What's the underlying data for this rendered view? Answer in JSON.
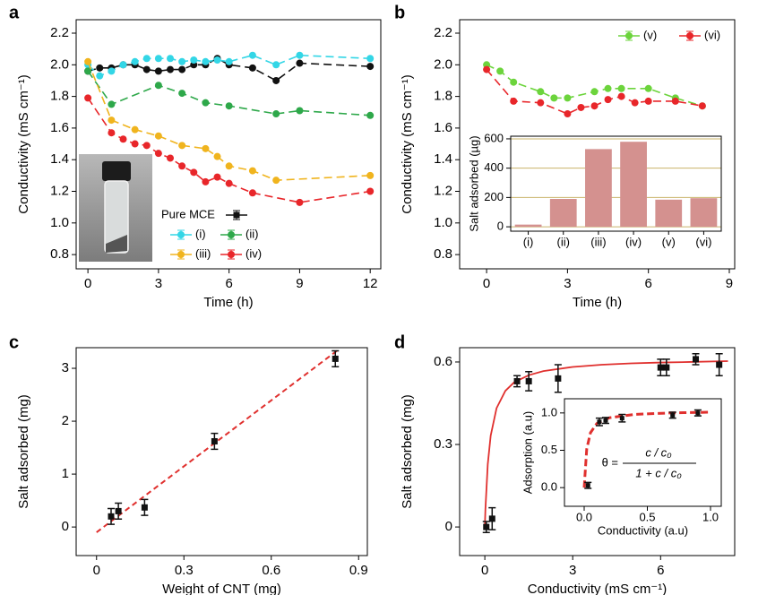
{
  "chart_data": [
    {
      "panel": "a",
      "type": "line",
      "xlabel": "Time (h)",
      "ylabel": "Conductivity (mS cm⁻¹)",
      "xlim": [
        -0.5,
        12.45
      ],
      "xticks": [
        0,
        3,
        6,
        9,
        12
      ],
      "ylim": [
        0.71,
        2.285
      ],
      "yticks": [
        0.8,
        {
          "value": 1,
          "label": "1.0"
        },
        1.2,
        1.4,
        1.6,
        1.8,
        {
          "value": 2,
          "label": "2.0"
        },
        2.2
      ],
      "legend": "lower-right",
      "series": [
        {
          "name": "Pure MCE",
          "color": "#111111",
          "x": [
            0,
            0.5,
            1,
            1.5,
            2,
            2.5,
            3,
            3.5,
            4,
            4.5,
            5,
            5.5,
            6,
            7,
            8,
            9,
            12
          ],
          "values": [
            1.96,
            1.98,
            1.98,
            2.0,
            2.0,
            1.97,
            1.96,
            1.97,
            1.97,
            2.0,
            2.0,
            2.04,
            2.0,
            1.98,
            1.9,
            2.01,
            1.99
          ]
        },
        {
          "name": "(i)",
          "color": "#33d6e6",
          "x": [
            0,
            0.5,
            1,
            1.5,
            2,
            2.5,
            3,
            3.5,
            4,
            4.5,
            5,
            5.5,
            6,
            7,
            8,
            9,
            12
          ],
          "values": [
            2.0,
            1.93,
            1.96,
            2.0,
            2.02,
            2.04,
            2.04,
            2.04,
            2.02,
            2.03,
            2.02,
            2.03,
            2.02,
            2.06,
            2.0,
            2.06,
            2.04
          ]
        },
        {
          "name": "(ii)",
          "color": "#2ea84a",
          "x": [
            0,
            1,
            3,
            4,
            5,
            6,
            8,
            9,
            12
          ],
          "values": [
            1.96,
            1.75,
            1.87,
            1.82,
            1.76,
            1.74,
            1.69,
            1.71,
            1.68
          ]
        },
        {
          "name": "(iii)",
          "color": "#f0b41e",
          "x": [
            0,
            1,
            2,
            3,
            4,
            5,
            5.5,
            6,
            7,
            8,
            12
          ],
          "values": [
            2.02,
            1.65,
            1.59,
            1.55,
            1.49,
            1.47,
            1.42,
            1.36,
            1.33,
            1.27,
            1.3
          ]
        },
        {
          "name": "(iv)",
          "color": "#e8262a",
          "x": [
            0,
            1,
            1.5,
            2,
            2.5,
            3,
            3.5,
            4,
            4.5,
            5,
            5.5,
            6,
            7,
            9,
            12
          ],
          "values": [
            1.79,
            1.57,
            1.53,
            1.5,
            1.49,
            1.44,
            1.41,
            1.36,
            1.32,
            1.26,
            1.29,
            1.25,
            1.19,
            1.13,
            1.2
          ]
        }
      ]
    },
    {
      "panel": "b",
      "type": "line",
      "xlabel": "Time (h)",
      "ylabel": "Conductivity (mS cm⁻¹)",
      "xlim": [
        -1,
        9.2
      ],
      "xticks": [
        0,
        3,
        6,
        9
      ],
      "ylim": [
        0.71,
        2.285
      ],
      "yticks": [
        0.8,
        {
          "value": 1,
          "label": "1.0"
        },
        1.2,
        1.4,
        1.6,
        1.8,
        {
          "value": 2,
          "label": "2.0"
        },
        2.2
      ],
      "legend": "upper-right",
      "series": [
        {
          "name": "(v)",
          "color": "#6cd43c",
          "x": [
            0,
            0.5,
            1,
            2,
            2.5,
            3,
            4,
            4.5,
            5,
            6,
            7,
            8
          ],
          "values": [
            2.0,
            1.96,
            1.89,
            1.83,
            1.79,
            1.79,
            1.83,
            1.85,
            1.85,
            1.85,
            1.79,
            1.74
          ]
        },
        {
          "name": "(vi)",
          "color": "#e8262a",
          "x": [
            0,
            1,
            2,
            3,
            3.5,
            4,
            4.5,
            5,
            5.5,
            6,
            7,
            8
          ],
          "values": [
            1.97,
            1.77,
            1.76,
            1.69,
            1.73,
            1.74,
            1.78,
            1.8,
            1.76,
            1.77,
            1.77,
            1.74
          ]
        }
      ],
      "inset": {
        "type": "bar",
        "ylabel": "Salt adsorbed (µg)",
        "categories": [
          "(i)",
          "(ii)",
          "(iii)",
          "(iv)",
          "(v)",
          "(vi)"
        ],
        "values": [
          15,
          190,
          530,
          580,
          185,
          195
        ],
        "color": "#d4918f",
        "ylim": [
          -30,
          618
        ],
        "yticks": [
          0,
          200,
          400,
          600
        ],
        "grid": true
      }
    },
    {
      "panel": "c",
      "type": "scatter",
      "xlabel": "Weight of CNT (mg)",
      "ylabel": "Salt adsorbed (mg)",
      "xlim": [
        -0.07,
        0.93
      ],
      "xticks": [
        0,
        0.3,
        0.6,
        0.9
      ],
      "ylim": [
        -0.54,
        3.39
      ],
      "yticks": [
        0,
        1,
        2,
        3
      ],
      "color": "#111111",
      "x": [
        0.05,
        0.075,
        0.165,
        0.405,
        0.82
      ],
      "values": [
        0.2,
        0.3,
        0.37,
        1.62,
        3.18
      ],
      "errors": [
        0.15,
        0.15,
        0.15,
        0.15,
        0.15
      ],
      "fit": {
        "color": "#e0302e",
        "dashed": true,
        "x": [
          0,
          0.83
        ],
        "y": [
          -0.1,
          3.35
        ]
      }
    },
    {
      "panel": "d",
      "type": "scatter",
      "xlabel": "Conductivity (mS cm⁻¹)",
      "ylabel": "Salt adsorbed (mg)",
      "xlim": [
        -0.86,
        8.53
      ],
      "xticks": [
        0,
        3,
        6
      ],
      "ylim": [
        -0.104,
        0.652
      ],
      "yticks": [
        0,
        0.3,
        0.6
      ],
      "color": "#111111",
      "x": [
        0.05,
        0.25,
        1.1,
        1.5,
        2.5,
        6.0,
        6.2,
        7.2,
        8.0
      ],
      "values": [
        0,
        0.03,
        0.53,
        0.53,
        0.54,
        0.58,
        0.58,
        0.61,
        0.59
      ],
      "errors": [
        0.02,
        0.04,
        0.02,
        0.035,
        0.05,
        0.03,
        0.03,
        0.02,
        0.04
      ],
      "fit": {
        "color": "#e0302e",
        "dashed": false,
        "x": [
          0,
          0.02,
          0.1,
          0.2,
          0.4,
          0.7,
          1,
          1.5,
          2,
          3,
          4,
          5,
          6,
          7,
          8.3
        ],
        "y": [
          0,
          0.065,
          0.228,
          0.332,
          0.432,
          0.495,
          0.526,
          0.552,
          0.567,
          0.582,
          0.59,
          0.595,
          0.598,
          0.6,
          0.603
        ]
      },
      "inset": {
        "type": "scatter",
        "xlabel": "Conductivity (a.u)",
        "ylabel": "Adsorption (a.u)",
        "xlim": [
          -0.156,
          1.085
        ],
        "xticks": [
          {
            "value": 0,
            "label": "0.0"
          },
          0.5,
          {
            "value": 1,
            "label": "1.0"
          }
        ],
        "ylim": [
          -0.25,
          1.19
        ],
        "yticks": [
          {
            "value": 0,
            "label": "0.0"
          },
          0.5,
          {
            "value": 1,
            "label": "1.0"
          }
        ],
        "color": "#111111",
        "x": [
          0.03,
          0.12,
          0.17,
          0.3,
          0.7,
          0.9
        ],
        "values": [
          0.03,
          0.88,
          0.9,
          0.93,
          0.97,
          1.0
        ],
        "errors": [
          0.04,
          0.05,
          0.04,
          0.05,
          0.04,
          0.04
        ],
        "fit": {
          "color": "#e0302e",
          "dashed": true,
          "x": [
            0,
            0.02,
            0.05,
            0.1,
            0.2,
            0.4,
            0.7,
            1
          ],
          "y": [
            0,
            0.515,
            0.736,
            0.858,
            0.936,
            0.981,
            1.001,
            1.01
          ]
        },
        "equation": {
          "lhs": "θ =",
          "numerator": "c / c₀",
          "denominator": "1 + c / c₀"
        }
      }
    }
  ]
}
